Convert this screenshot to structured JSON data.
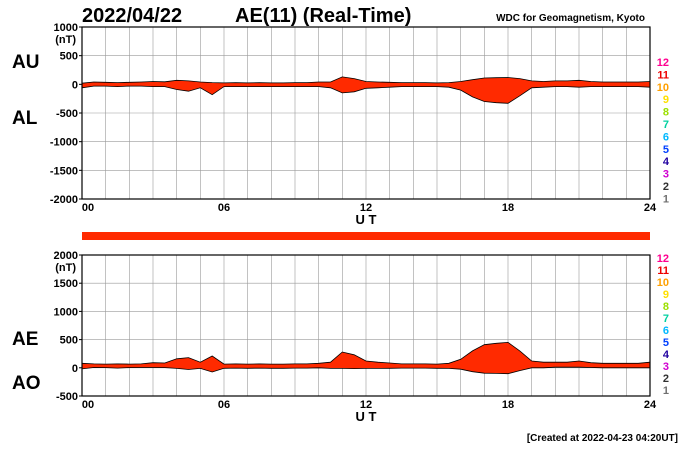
{
  "header": {
    "date": "2022/04/22",
    "title": "AE(11) (Real-Time)",
    "source": "WDC for Geomagnetism, Kyoto"
  },
  "footer": {
    "created": "[Created at 2022-04-23 04:20UT]"
  },
  "colors": {
    "fill": "#ff2a00",
    "line": "#000000",
    "grid": "#9a9a9a"
  },
  "station_colors": [
    "#ff0090",
    "#ee0000",
    "#ffa000",
    "#ffe000",
    "#9be000",
    "#00d0a0",
    "#00b8ff",
    "#0040ff",
    "#2000a0",
    "#d000d0",
    "#303030",
    "#707070",
    "#b0b0b0"
  ],
  "chart_data": [
    {
      "type": "area",
      "name": "upper",
      "labels": [
        "AU",
        "AL"
      ],
      "ylabel": "(nT)",
      "xlabel": "U T",
      "ylim": [
        -2000,
        1000
      ],
      "yticks": [
        1000,
        500,
        0,
        -500,
        -1000,
        -1500,
        -2000
      ],
      "xticks": [
        "00",
        "06",
        "12",
        "18",
        "24"
      ],
      "xlim": [
        0,
        24
      ],
      "grid": true,
      "station_numbers": [
        "12",
        "11",
        "10",
        "9",
        "8",
        "7",
        "6",
        "5",
        "4",
        "3",
        "2",
        "1"
      ],
      "series": [
        {
          "name": "AU",
          "x": [
            0,
            0.5,
            1,
            1.5,
            2,
            2.5,
            3,
            3.5,
            4,
            4.5,
            5,
            5.5,
            6,
            6.5,
            7,
            7.5,
            8,
            8.5,
            9,
            9.5,
            10,
            10.5,
            11,
            11.5,
            12,
            12.5,
            13,
            13.5,
            14,
            14.5,
            15,
            15.5,
            16,
            16.5,
            17,
            17.5,
            18,
            18.5,
            19,
            19.5,
            20,
            20.5,
            21,
            21.5,
            22,
            22.5,
            23,
            23.5,
            24
          ],
          "values": [
            20,
            40,
            35,
            30,
            35,
            40,
            50,
            45,
            70,
            60,
            40,
            30,
            25,
            30,
            25,
            30,
            25,
            25,
            30,
            30,
            40,
            40,
            130,
            100,
            50,
            40,
            35,
            30,
            30,
            30,
            25,
            30,
            50,
            80,
            110,
            115,
            120,
            100,
            60,
            50,
            60,
            60,
            70,
            50,
            40,
            40,
            40,
            40,
            50
          ]
        },
        {
          "name": "AL",
          "x": [
            0,
            0.5,
            1,
            1.5,
            2,
            2.5,
            3,
            3.5,
            4,
            4.5,
            5,
            5.5,
            6,
            6.5,
            7,
            7.5,
            8,
            8.5,
            9,
            9.5,
            10,
            10.5,
            11,
            11.5,
            12,
            12.5,
            13,
            13.5,
            14,
            14.5,
            15,
            15.5,
            16,
            16.5,
            17,
            17.5,
            18,
            18.5,
            19,
            19.5,
            20,
            20.5,
            21,
            21.5,
            22,
            22.5,
            23,
            23.5,
            24
          ],
          "values": [
            -60,
            -30,
            -30,
            -40,
            -30,
            -30,
            -40,
            -40,
            -90,
            -120,
            -60,
            -180,
            -40,
            -40,
            -40,
            -40,
            -40,
            -40,
            -40,
            -40,
            -40,
            -60,
            -150,
            -130,
            -70,
            -60,
            -50,
            -40,
            -40,
            -40,
            -40,
            -50,
            -100,
            -220,
            -300,
            -320,
            -330,
            -200,
            -60,
            -50,
            -40,
            -40,
            -50,
            -40,
            -40,
            -40,
            -40,
            -40,
            -50
          ]
        }
      ]
    },
    {
      "type": "area",
      "name": "lower",
      "labels": [
        "AE",
        "AO"
      ],
      "ylabel": "(nT)",
      "xlabel": "U T",
      "ylim": [
        -500,
        2000
      ],
      "yticks": [
        2000,
        1500,
        1000,
        500,
        0,
        -500
      ],
      "xticks": [
        "00",
        "06",
        "12",
        "18",
        "24"
      ],
      "xlim": [
        0,
        24
      ],
      "grid": true,
      "station_numbers": [
        "12",
        "11",
        "10",
        "9",
        "8",
        "7",
        "6",
        "5",
        "4",
        "3",
        "2",
        "1"
      ],
      "series": [
        {
          "name": "AE",
          "x": [
            0,
            0.5,
            1,
            1.5,
            2,
            2.5,
            3,
            3.5,
            4,
            4.5,
            5,
            5.5,
            6,
            6.5,
            7,
            7.5,
            8,
            8.5,
            9,
            9.5,
            10,
            10.5,
            11,
            11.5,
            12,
            12.5,
            13,
            13.5,
            14,
            14.5,
            15,
            15.5,
            16,
            16.5,
            17,
            17.5,
            18,
            18.5,
            19,
            19.5,
            20,
            20.5,
            21,
            21.5,
            22,
            22.5,
            23,
            23.5,
            24
          ],
          "values": [
            80,
            70,
            65,
            70,
            65,
            70,
            90,
            85,
            160,
            180,
            100,
            210,
            65,
            70,
            65,
            70,
            65,
            65,
            70,
            70,
            80,
            100,
            280,
            230,
            120,
            100,
            85,
            70,
            70,
            70,
            65,
            80,
            150,
            300,
            410,
            435,
            450,
            300,
            120,
            100,
            100,
            100,
            120,
            90,
            80,
            80,
            80,
            80,
            100
          ]
        },
        {
          "name": "AO",
          "x": [
            0,
            0.5,
            1,
            1.5,
            2,
            2.5,
            3,
            3.5,
            4,
            4.5,
            5,
            5.5,
            6,
            6.5,
            7,
            7.5,
            8,
            8.5,
            9,
            9.5,
            10,
            10.5,
            11,
            11.5,
            12,
            12.5,
            13,
            13.5,
            14,
            14.5,
            15,
            15.5,
            16,
            16.5,
            17,
            17.5,
            18,
            18.5,
            19,
            19.5,
            20,
            20.5,
            21,
            21.5,
            22,
            22.5,
            23,
            23.5,
            24
          ],
          "values": [
            -20,
            5,
            3,
            -5,
            3,
            5,
            5,
            3,
            -10,
            -30,
            -10,
            -75,
            -8,
            -5,
            -8,
            -5,
            -8,
            -8,
            -5,
            -5,
            0,
            -10,
            -10,
            -15,
            -10,
            -10,
            -8,
            -5,
            -5,
            -5,
            -8,
            -10,
            -25,
            -70,
            -95,
            -100,
            -105,
            -50,
            0,
            0,
            10,
            10,
            10,
            5,
            0,
            0,
            0,
            0,
            0
          ]
        }
      ]
    }
  ]
}
